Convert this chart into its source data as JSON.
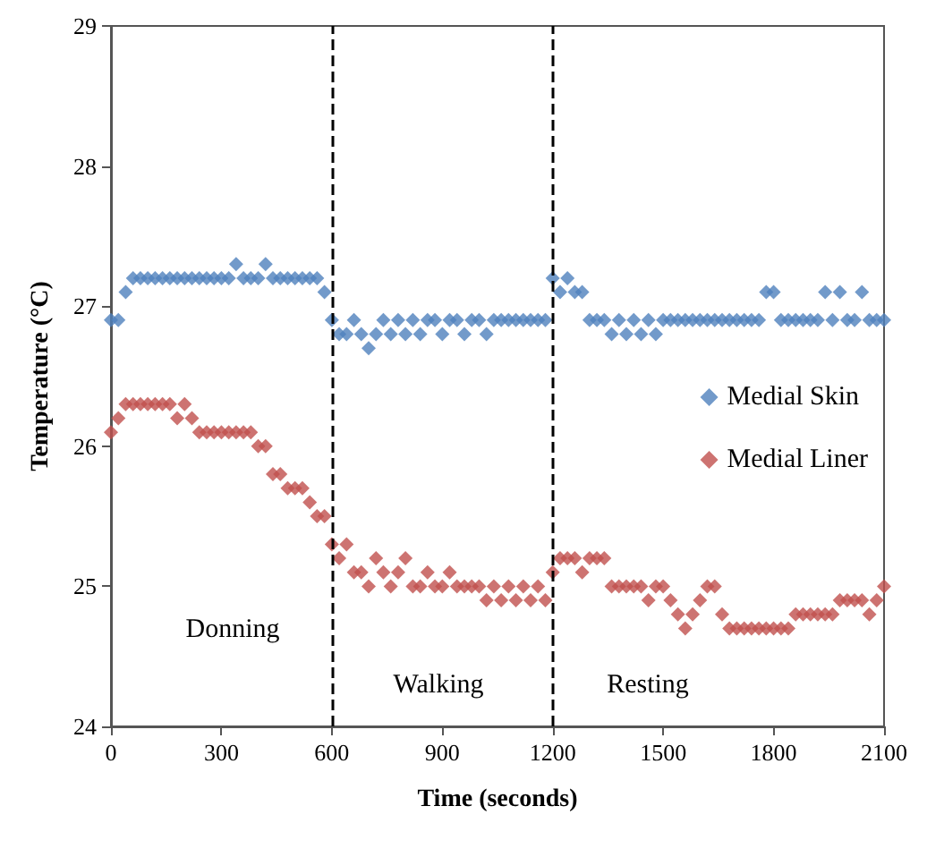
{
  "chart_data": {
    "type": "scatter",
    "xlabel": "Time (seconds)",
    "ylabel": "Temperature (°C)",
    "xlim": [
      0,
      2100
    ],
    "xticks": [
      0,
      300,
      600,
      900,
      1200,
      1500,
      1800,
      2100
    ],
    "ylim": [
      24,
      29
    ],
    "yticks": [
      24,
      25,
      26,
      27,
      28,
      29
    ],
    "grid": false,
    "legend": "right",
    "marker": "diamond",
    "x": [
      0,
      20,
      40,
      60,
      80,
      100,
      120,
      140,
      160,
      180,
      200,
      220,
      240,
      260,
      280,
      300,
      320,
      340,
      360,
      380,
      400,
      420,
      440,
      460,
      480,
      500,
      520,
      540,
      560,
      580,
      600,
      620,
      640,
      660,
      680,
      700,
      720,
      740,
      760,
      780,
      800,
      820,
      840,
      860,
      880,
      900,
      920,
      940,
      960,
      980,
      1000,
      1020,
      1040,
      1060,
      1080,
      1100,
      1120,
      1140,
      1160,
      1180,
      1200,
      1220,
      1240,
      1260,
      1280,
      1300,
      1320,
      1340,
      1360,
      1380,
      1400,
      1420,
      1440,
      1460,
      1480,
      1500,
      1520,
      1540,
      1560,
      1580,
      1600,
      1620,
      1640,
      1660,
      1680,
      1700,
      1720,
      1740,
      1760,
      1780,
      1800,
      1820,
      1840,
      1860,
      1880,
      1900,
      1920,
      1940,
      1960,
      1980,
      2000,
      2020,
      2040,
      2060,
      2080,
      2100
    ],
    "series": [
      {
        "name": "Medial Skin",
        "color": "#4f81bd",
        "values": [
          26.9,
          26.9,
          27.1,
          27.2,
          27.2,
          27.2,
          27.2,
          27.2,
          27.2,
          27.2,
          27.2,
          27.2,
          27.2,
          27.2,
          27.2,
          27.2,
          27.2,
          27.3,
          27.2,
          27.2,
          27.2,
          27.3,
          27.2,
          27.2,
          27.2,
          27.2,
          27.2,
          27.2,
          27.2,
          27.1,
          26.9,
          26.8,
          26.8,
          26.9,
          26.8,
          26.7,
          26.8,
          26.9,
          26.8,
          26.9,
          26.8,
          26.9,
          26.8,
          26.9,
          26.9,
          26.8,
          26.9,
          26.9,
          26.8,
          26.9,
          26.9,
          26.8,
          26.9,
          26.9,
          26.9,
          26.9,
          26.9,
          26.9,
          26.9,
          26.9,
          27.2,
          27.1,
          27.2,
          27.1,
          27.1,
          26.9,
          26.9,
          26.9,
          26.8,
          26.9,
          26.8,
          26.9,
          26.8,
          26.9,
          26.8,
          26.9,
          26.9,
          26.9,
          26.9,
          26.9,
          26.9,
          26.9,
          26.9,
          26.9,
          26.9,
          26.9,
          26.9,
          26.9,
          26.9,
          27.1,
          27.1,
          26.9,
          26.9,
          26.9,
          26.9,
          26.9,
          26.9,
          27.1,
          26.9,
          27.1,
          26.9,
          26.9,
          27.1,
          26.9,
          26.9,
          26.9
        ]
      },
      {
        "name": "Medial Liner",
        "color": "#c0504d",
        "values": [
          26.1,
          26.2,
          26.3,
          26.3,
          26.3,
          26.3,
          26.3,
          26.3,
          26.3,
          26.2,
          26.3,
          26.2,
          26.1,
          26.1,
          26.1,
          26.1,
          26.1,
          26.1,
          26.1,
          26.1,
          26.0,
          26.0,
          25.8,
          25.8,
          25.7,
          25.7,
          25.7,
          25.6,
          25.5,
          25.5,
          25.3,
          25.2,
          25.3,
          25.1,
          25.1,
          25.0,
          25.2,
          25.1,
          25.0,
          25.1,
          25.2,
          25.0,
          25.0,
          25.1,
          25.0,
          25.0,
          25.1,
          25.0,
          25.0,
          25.0,
          25.0,
          24.9,
          25.0,
          24.9,
          25.0,
          24.9,
          25.0,
          24.9,
          25.0,
          24.9,
          25.1,
          25.2,
          25.2,
          25.2,
          25.1,
          25.2,
          25.2,
          25.2,
          25.0,
          25.0,
          25.0,
          25.0,
          25.0,
          24.9,
          25.0,
          25.0,
          24.9,
          24.8,
          24.7,
          24.8,
          24.9,
          25.0,
          25.0,
          24.8,
          24.7,
          24.7,
          24.7,
          24.7,
          24.7,
          24.7,
          24.7,
          24.7,
          24.7,
          24.8,
          24.8,
          24.8,
          24.8,
          24.8,
          24.8,
          24.9,
          24.9,
          24.9,
          24.9,
          24.8,
          24.9,
          25.0
        ]
      }
    ],
    "ref_lines": [
      {
        "axis": "x",
        "value": 600,
        "label": null,
        "color": "#000000",
        "line_style": "dashed"
      },
      {
        "axis": "x",
        "value": 1200,
        "label": null,
        "color": "#000000",
        "line_style": "dashed"
      }
    ],
    "annotations": [
      "Donning",
      "Walking",
      "Resting"
    ]
  }
}
